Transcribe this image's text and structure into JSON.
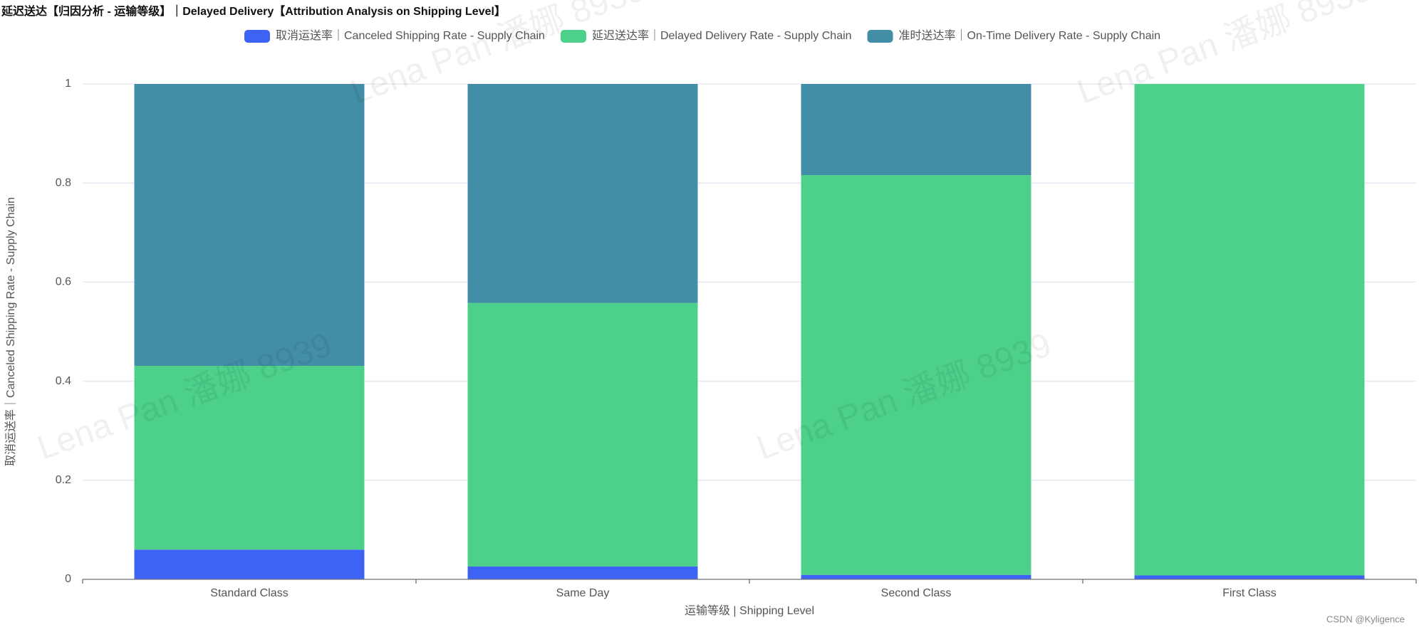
{
  "chart_data": {
    "type": "stacked_bar",
    "title": "延迟送达【归因分析 - 运输等级】｜Delayed Delivery【Attribution Analysis on Shipping Level】",
    "x_label": "运输等级 | Shipping Level",
    "y_label": "取消运送率｜Canceled Shipping Rate - Supply Chain",
    "categories": [
      "Standard Class",
      "Same Day",
      "Second Class",
      "First Class"
    ],
    "series": [
      {
        "name": "取消运送率｜Canceled Shipping Rate - Supply Chain",
        "color": "#3d63f5",
        "values": [
          0.06,
          0.026,
          0.009,
          0.008
        ]
      },
      {
        "name": "延迟送达率｜Delayed Delivery Rate - Supply Chain",
        "color": "#4cd08a",
        "values": [
          0.371,
          0.532,
          0.807,
          0.992
        ]
      },
      {
        "name": "准时送达率｜On-Time Delivery Rate - Supply Chain",
        "color": "#428ea6",
        "values": [
          0.569,
          0.442,
          0.184,
          0
        ]
      }
    ],
    "ylim": [
      0,
      1
    ],
    "yticks": [
      0,
      0.2,
      0.4,
      0.6,
      0.8,
      1
    ],
    "grid": true,
    "watermark": "Lena Pan 潘娜 8939",
    "credit": "CSDN @Kyligence"
  }
}
